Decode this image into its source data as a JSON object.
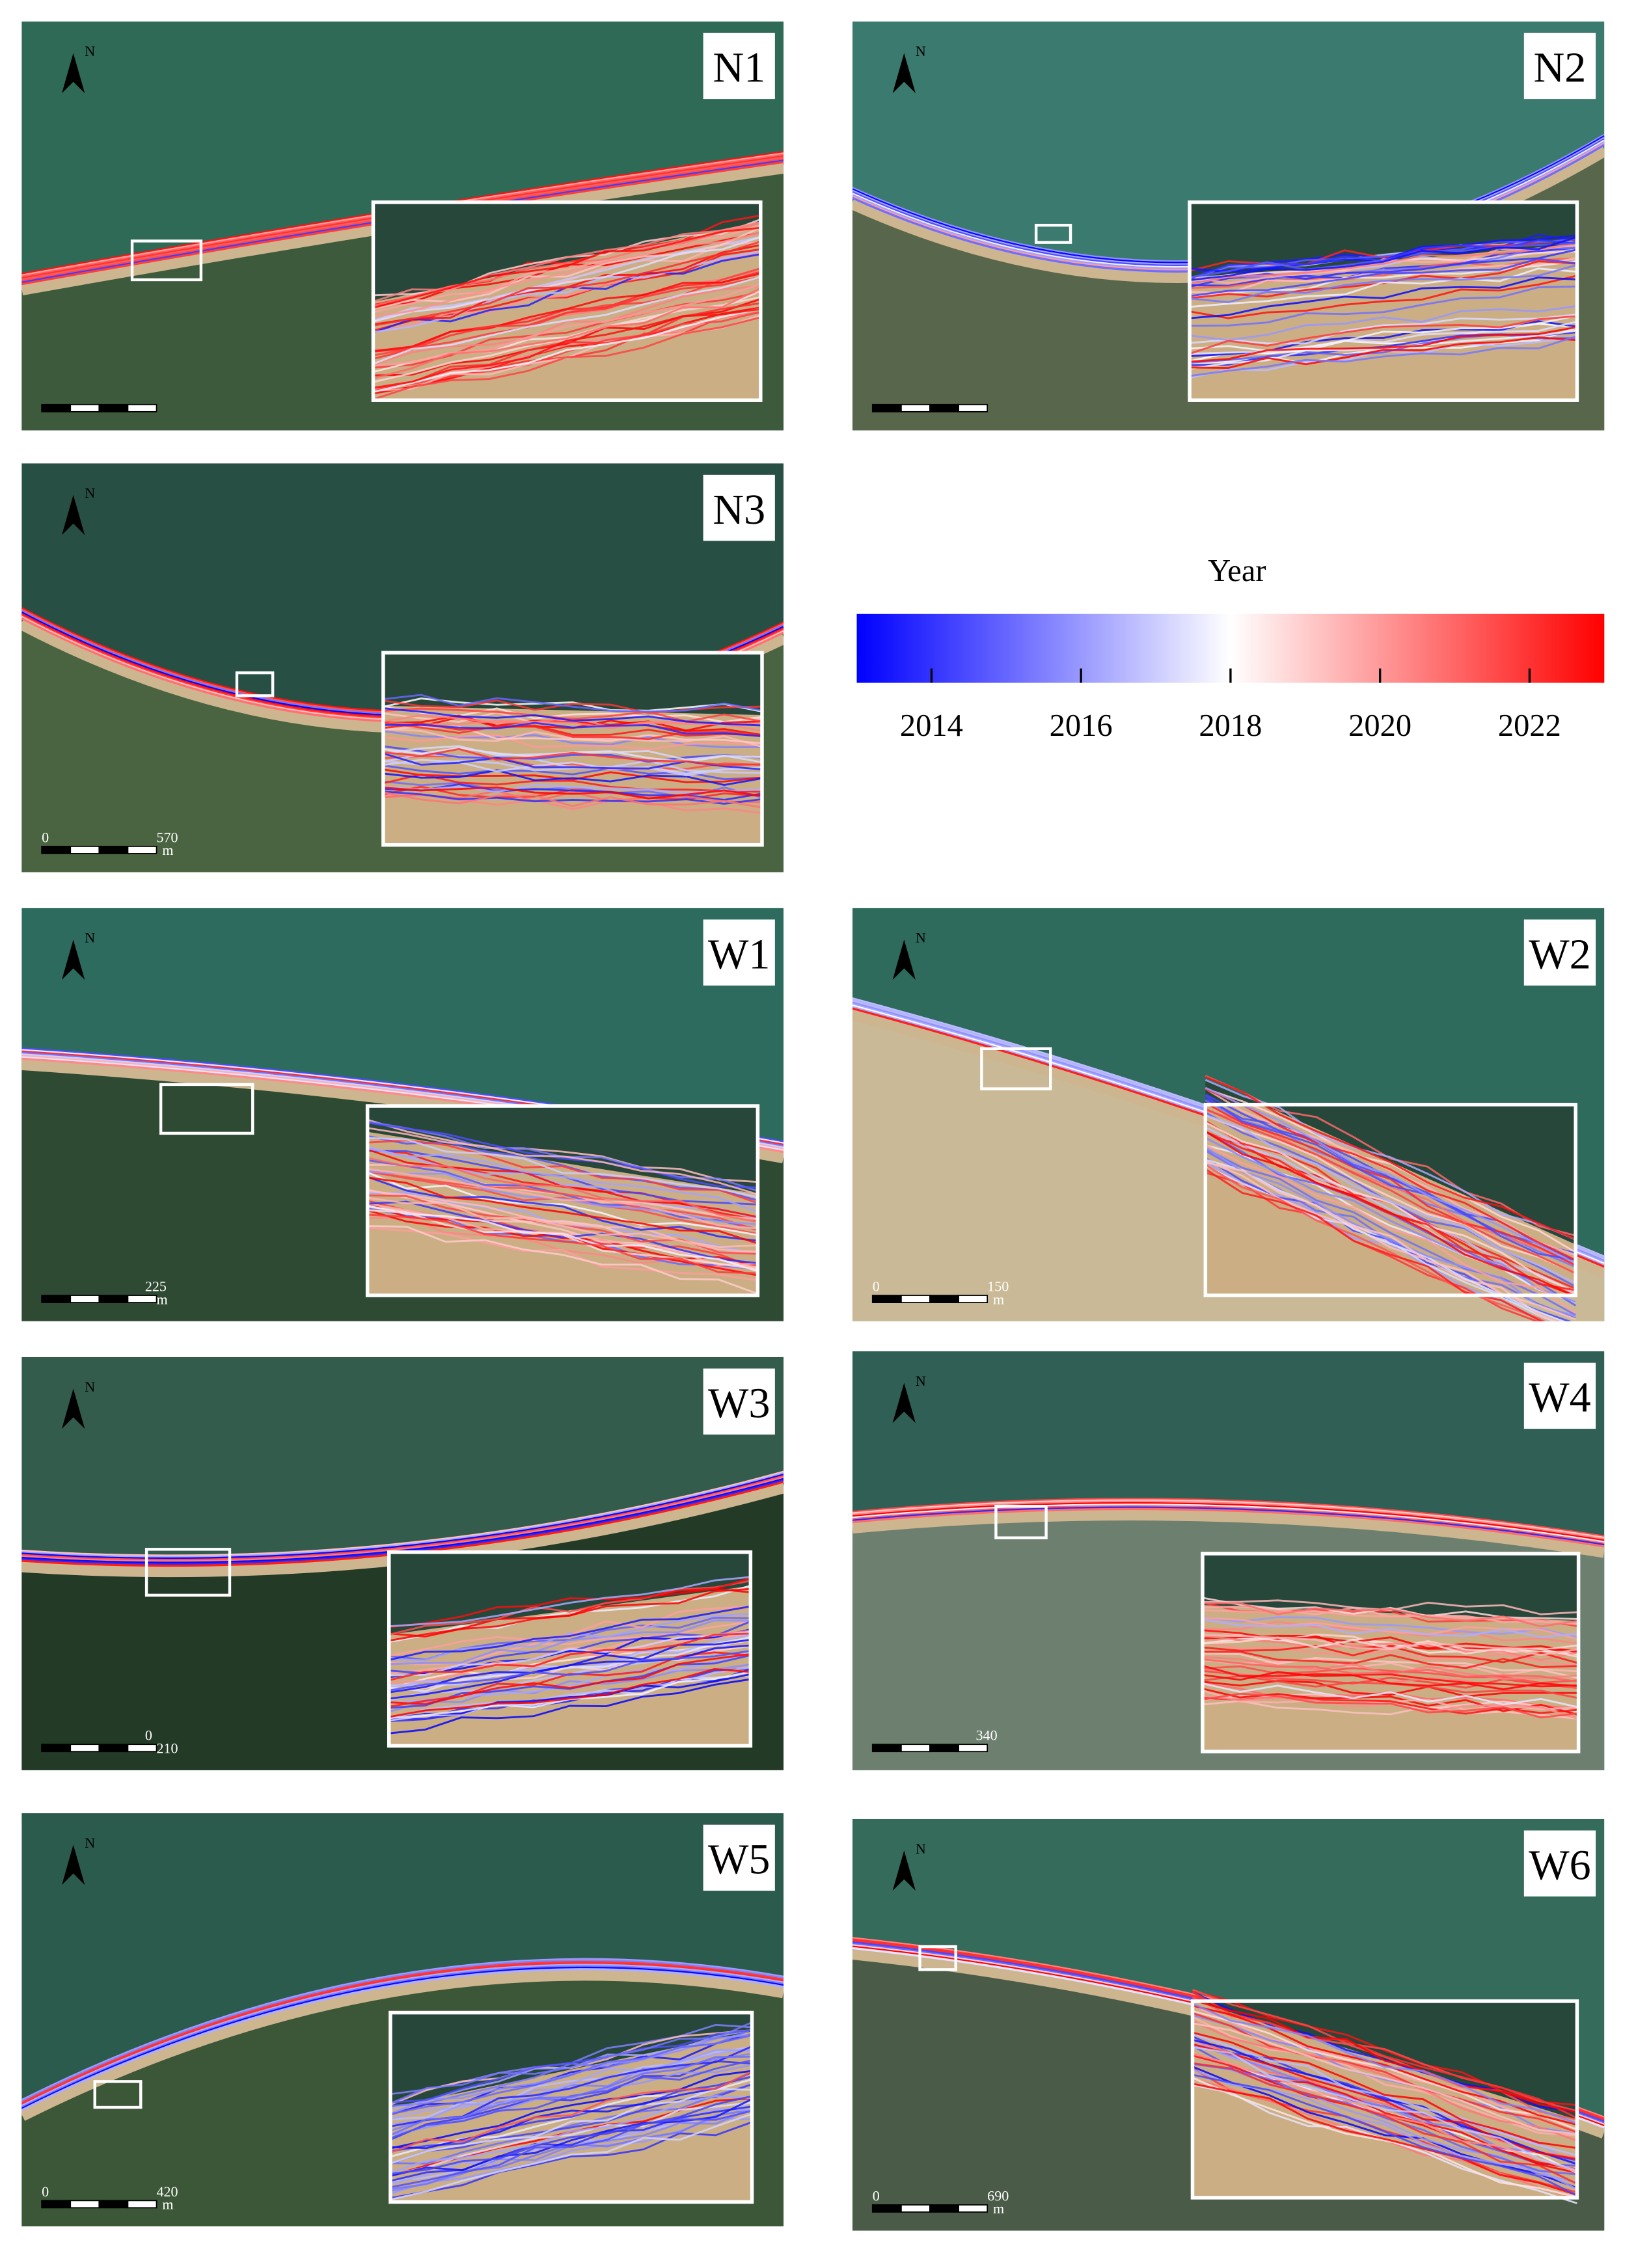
{
  "colorbar": {
    "title": "Year",
    "range": [
      2013,
      2023
    ],
    "ticks": [
      2014,
      2016,
      2018,
      2020,
      2022
    ],
    "colors": [
      "#0000ff",
      "#ffffff",
      "#ff0000"
    ]
  },
  "north_label": "N",
  "panels": [
    {
      "label": "N1"
    },
    {
      "label": "N2"
    },
    {
      "label": "N3",
      "scale": [
        "0",
        "570",
        "m"
      ]
    },
    {
      "label": "W1",
      "scale": [
        "225",
        "m"
      ]
    },
    {
      "label": "W2",
      "scale": [
        "0",
        "150",
        "m"
      ]
    },
    {
      "label": "W3",
      "scale": [
        "0",
        "210"
      ]
    },
    {
      "label": "W4",
      "scale": [
        "340"
      ]
    },
    {
      "label": "W5",
      "scale": [
        "0",
        "420",
        "m"
      ]
    },
    {
      "label": "W6",
      "scale": [
        "0",
        "690",
        "m"
      ]
    }
  ]
}
